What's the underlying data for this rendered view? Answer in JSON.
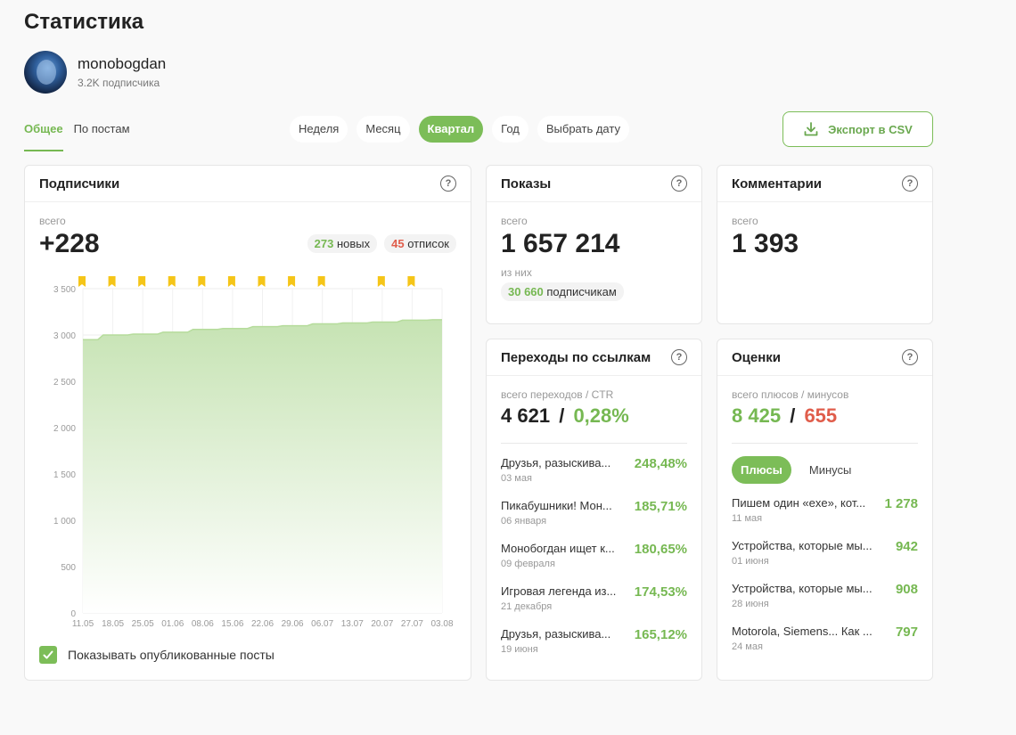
{
  "page": {
    "title": "Статистика"
  },
  "profile": {
    "name": "monobogdan",
    "subscribers": "3.2K подписчика"
  },
  "tabs": [
    {
      "label": "Общее"
    },
    {
      "label": "По постам"
    }
  ],
  "periods": [
    {
      "label": "Неделя"
    },
    {
      "label": "Месяц"
    },
    {
      "label": "Квартал"
    },
    {
      "label": "Год"
    },
    {
      "label": "Выбрать дату"
    }
  ],
  "export": {
    "label": "Экспорт в CSV"
  },
  "colors": {
    "accent": "#7cbd58",
    "negative": "#e05d4b",
    "marker": "#f5c518"
  },
  "subscribers_card": {
    "title": "Подписчики",
    "total_label": "всего",
    "total": "+228",
    "new_count": "273",
    "new_label": "новых",
    "unsub_count": "45",
    "unsub_label": "отписок",
    "show_posts_label": "Показывать опубликованные посты"
  },
  "impressions_card": {
    "title": "Показы",
    "total_label": "всего",
    "total": "1 657 214",
    "of_label": "из них",
    "subs_count": "30 660",
    "subs_label": "подписчикам"
  },
  "comments_card": {
    "title": "Комментарии",
    "total_label": "всего",
    "total": "1 393"
  },
  "links_card": {
    "title": "Переходы по ссылкам",
    "label": "всего переходов / CTR",
    "total": "4 621",
    "sep": "/",
    "ctr": "0,28%",
    "items": [
      {
        "title": "Друзья, разыскива...",
        "date": "03 мая",
        "value": "248,48%"
      },
      {
        "title": "Пикабушники! Мон...",
        "date": "06 января",
        "value": "185,71%"
      },
      {
        "title": "Монобогдан ищет к...",
        "date": "09 февраля",
        "value": "180,65%"
      },
      {
        "title": "Игровая легенда из...",
        "date": "21 декабря",
        "value": "174,53%"
      },
      {
        "title": "Друзья, разыскива...",
        "date": "19 июня",
        "value": "165,12%"
      }
    ]
  },
  "ratings_card": {
    "title": "Оценки",
    "label": "всего плюсов / минусов",
    "plus": "8 425",
    "sep": "/",
    "minus": "655",
    "tabs": [
      {
        "label": "Плюсы"
      },
      {
        "label": "Минусы"
      }
    ],
    "items": [
      {
        "title": "Пишем один «exe», кот...",
        "date": "11 мая",
        "value": "1 278"
      },
      {
        "title": "Устройства, которые мы...",
        "date": "01 июня",
        "value": "942"
      },
      {
        "title": "Устройства, которые мы...",
        "date": "28 июня",
        "value": "908"
      },
      {
        "title": "Motorola, Siemens... Как ...",
        "date": "24 мая",
        "value": "797"
      }
    ]
  },
  "chart_data": {
    "type": "area",
    "x": [
      "11.05",
      "18.05",
      "25.05",
      "01.06",
      "08.06",
      "15.06",
      "22.06",
      "29.06",
      "06.07",
      "13.07",
      "20.07",
      "27.07",
      "03.08"
    ],
    "series": [
      {
        "values": [
          2950,
          3000,
          3010,
          3030,
          3060,
          3070,
          3090,
          3100,
          3120,
          3130,
          3140,
          3160,
          3165
        ]
      }
    ],
    "ylim": [
      0,
      3500
    ],
    "yticks": [
      "0",
      "500",
      "1 000",
      "1 500",
      "2 000",
      "2 500",
      "3 000",
      "3 500"
    ],
    "grid": true,
    "post_markers": [
      "11.05",
      "18.05",
      "25.05",
      "01.06",
      "08.06",
      "15.06",
      "22.06",
      "29.06",
      "06.07",
      "20.07",
      "27.07"
    ]
  }
}
